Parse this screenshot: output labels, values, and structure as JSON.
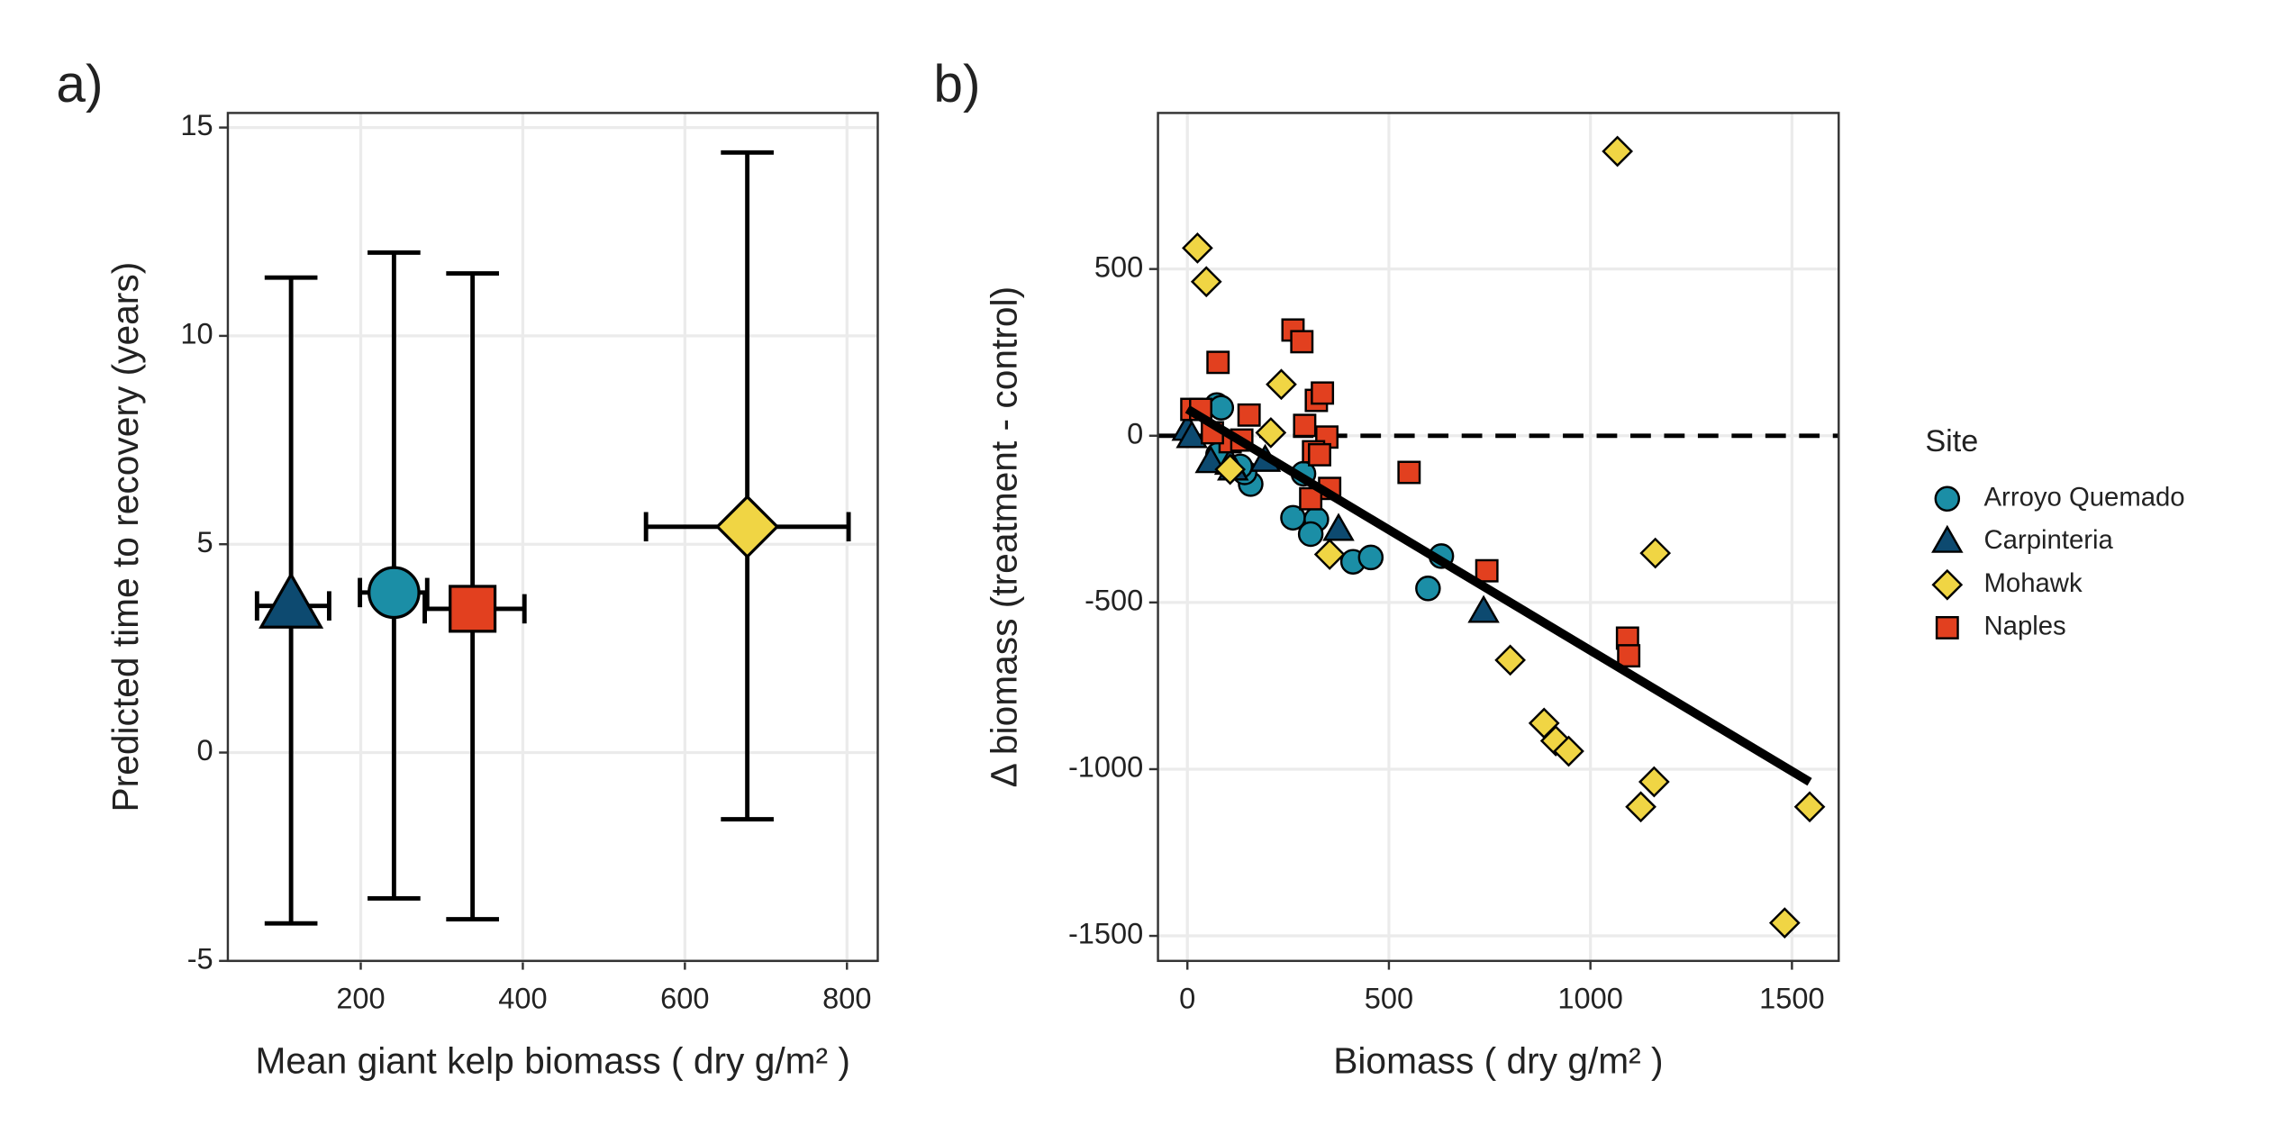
{
  "chart_data": [
    {
      "type": "errorbar",
      "panel_label": "a)",
      "x_label": "Mean giant kelp biomass ( dry g/m² )",
      "y_label": "Predicted time to recovery (years)",
      "xlim": [
        36,
        838
      ],
      "xticks": [
        200,
        400,
        600,
        800
      ],
      "ylim": [
        -5,
        15.35
      ],
      "yticks": [
        -5,
        0,
        5,
        10,
        15
      ],
      "grid": true,
      "series": [
        {
          "name": "Carpinteria",
          "color": "#0d4a70",
          "marker": "triangle",
          "x": [
            114
          ],
          "y": [
            3.52
          ],
          "xmin": [
            72
          ],
          "xmax": [
            161
          ],
          "ymin": [
            -4.1
          ],
          "ymax": [
            11.4
          ]
        },
        {
          "name": "Arroyo Quemado",
          "color": "#1b8ea6",
          "marker": "circle",
          "x": [
            241
          ],
          "y": [
            3.84
          ],
          "xmin": [
            199
          ],
          "xmax": [
            282
          ],
          "ymin": [
            -3.5
          ],
          "ymax": [
            12.0
          ]
        },
        {
          "name": "Naples",
          "color": "#e2401f",
          "marker": "square",
          "x": [
            338
          ],
          "y": [
            3.45
          ],
          "xmin": [
            279
          ],
          "xmax": [
            402
          ],
          "ymin": [
            -4.0
          ],
          "ymax": [
            11.5
          ]
        },
        {
          "name": "Mohawk",
          "color": "#f0d544",
          "marker": "diamond",
          "x": [
            677
          ],
          "y": [
            5.42
          ],
          "xmin": [
            552
          ],
          "xmax": [
            802
          ],
          "ymin": [
            -1.6
          ],
          "ymax": [
            14.4
          ]
        }
      ]
    },
    {
      "type": "scatter",
      "panel_label": "b)",
      "x_label": "Biomass ( dry g/m² )",
      "y_label": "Δ biomass (treatment - control)",
      "xlim": [
        -73,
        1616
      ],
      "xticks": [
        0,
        500,
        1000,
        1500
      ],
      "ylim": [
        -1575,
        968
      ],
      "yticks": [
        -1500,
        -1000,
        -500,
        0,
        500
      ],
      "grid": true,
      "hline": 0,
      "fit": {
        "x": [
          0,
          1544
        ],
        "y": [
          80,
          -1038
        ]
      },
      "legend": "right",
      "legend_title": "Site",
      "series": [
        {
          "name": "Arroyo Quemado",
          "color": "#1b8ea6",
          "marker": "circle",
          "x": [
            73,
            84,
            157,
            288,
            262,
            320,
            306,
            411,
            455,
            630,
            597,
            142,
            76,
            131
          ],
          "y": [
            92,
            84,
            -145,
            -114,
            -246,
            -251,
            -295,
            -378,
            -365,
            -361,
            -458,
            -110,
            -57,
            -92
          ]
        },
        {
          "name": "Carpinteria",
          "color": "#0d4a70",
          "marker": "triangle",
          "x": [
            0,
            11,
            58,
            106,
            193,
            375,
            735,
            113
          ],
          "y": [
            18,
            -4,
            -79,
            -84,
            -75,
            -282,
            -528,
            -101
          ]
        },
        {
          "name": "Mohawk",
          "color": "#f0d544",
          "marker": "diamond",
          "x": [
            25,
            47,
            1067,
            233,
            207,
            106,
            353,
            801,
            885,
            914,
            946,
            1161,
            1158,
            1125,
            1544,
            1482
          ],
          "y": [
            563,
            462,
            853,
            154,
            9,
            -101,
            -356,
            -673,
            -862,
            -915,
            -946,
            -352,
            -1038,
            -1113,
            -1113,
            -1461
          ]
        },
        {
          "name": "Naples",
          "color": "#e2401f",
          "marker": "square",
          "x": [
            11,
            33,
            76,
            153,
            262,
            284,
            320,
            335,
            291,
            346,
            106,
            313,
            328,
            353,
            306,
            550,
            743,
            1092,
            1095,
            62,
            135
          ],
          "y": [
            79,
            79,
            220,
            62,
            317,
            282,
            106,
            128,
            31,
            -4,
            -18,
            -48,
            -57,
            -158,
            -189,
            -110,
            -405,
            -607,
            -660,
            9,
            -13
          ]
        }
      ]
    }
  ]
}
